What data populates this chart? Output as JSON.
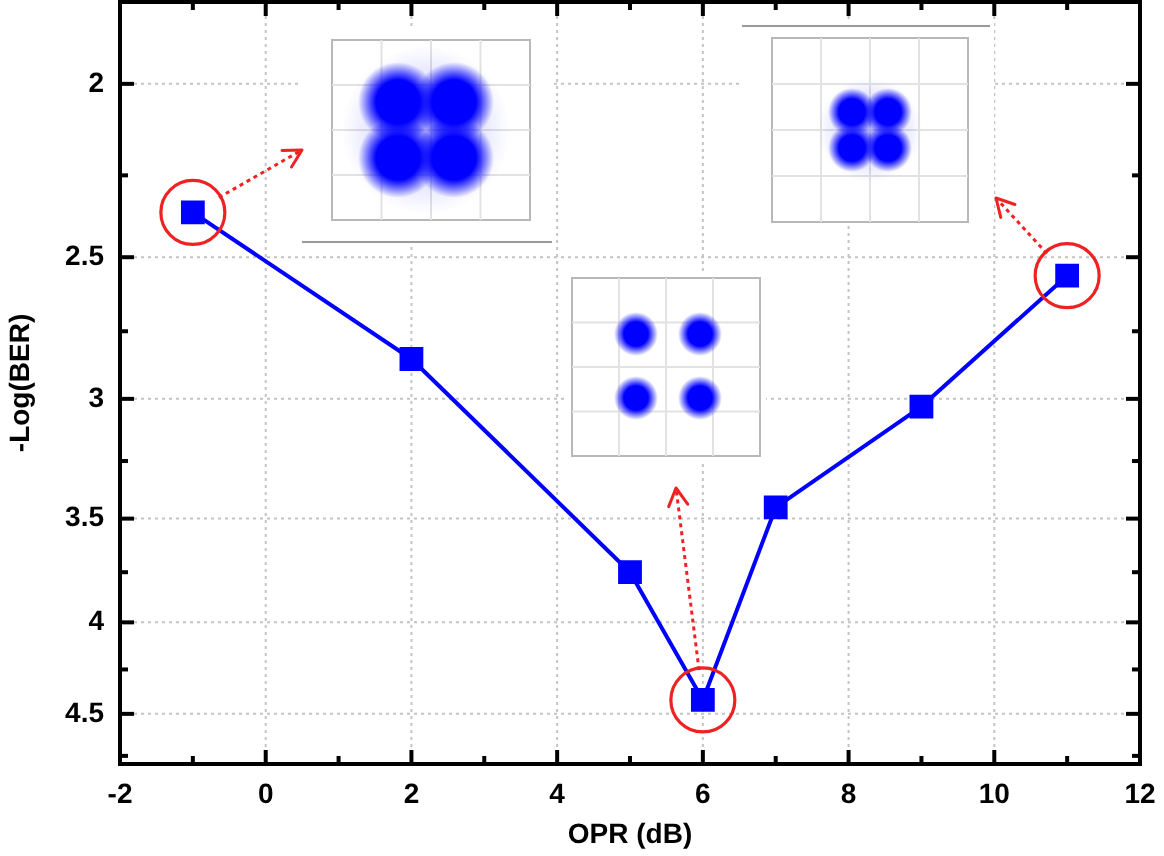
{
  "chart_data": {
    "type": "line",
    "xlabel": "OPR (dB)",
    "ylabel": "-Log(BER)",
    "x": [
      -1,
      2,
      5,
      6,
      7,
      9,
      11
    ],
    "series": [
      {
        "color": "#0000ff",
        "values": [
          2.36,
          2.85,
          3.75,
          4.42,
          3.45,
          3.03,
          2.56
        ]
      }
    ],
    "xlim": [
      -2,
      12
    ],
    "ylim": [
      4.8,
      1.8
    ],
    "xticks": [
      -2,
      {
        "value": -1,
        "label": null
      },
      0,
      {
        "value": 1,
        "label": null
      },
      2,
      {
        "value": 3,
        "label": null
      },
      4,
      {
        "value": 5,
        "label": null
      },
      6,
      {
        "value": 7,
        "label": null
      },
      8,
      {
        "value": 9,
        "label": null
      },
      10,
      {
        "value": 11,
        "label": null
      },
      12
    ],
    "yticks": [
      2,
      {
        "value": 2.25,
        "label": null
      },
      2.5,
      {
        "value": 2.75,
        "label": null
      },
      3,
      {
        "value": 3.25,
        "label": null
      },
      3.5,
      {
        "value": 3.75,
        "label": null
      },
      4,
      {
        "value": 4.25,
        "label": null
      },
      4.5,
      {
        "value": 4.75,
        "label": null
      }
    ],
    "log": "y",
    "grid": true,
    "marker": "square",
    "line_style": "solid"
  }
}
